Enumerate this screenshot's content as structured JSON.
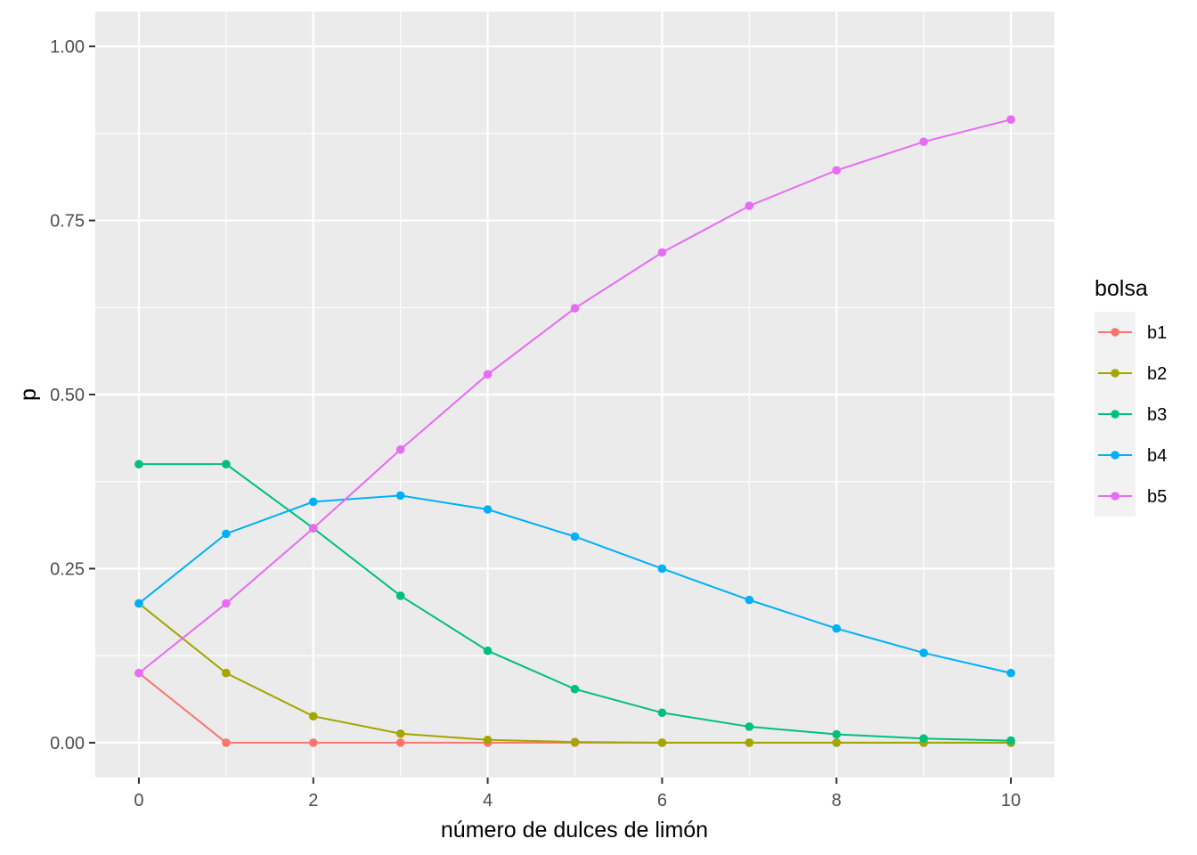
{
  "chart_data": {
    "type": "line",
    "title": "",
    "xlabel": "número de dulces de limón",
    "ylabel": "p",
    "xlim": [
      -0.5,
      10.5
    ],
    "ylim": [
      -0.05,
      1.05
    ],
    "x_ticks": [
      0,
      2,
      4,
      6,
      8,
      10
    ],
    "x_tick_labels": [
      "0",
      "2",
      "4",
      "6",
      "8",
      "10"
    ],
    "y_ticks": [
      0,
      0.25,
      0.5,
      0.75,
      1.0
    ],
    "y_tick_labels": [
      "0.00",
      "0.25",
      "0.50",
      "0.75",
      "1.00"
    ],
    "grid": true,
    "legend": {
      "title": "bolsa",
      "position": "right"
    },
    "x": [
      0,
      1,
      2,
      3,
      4,
      5,
      6,
      7,
      8,
      9,
      10
    ],
    "series": [
      {
        "name": "b1",
        "color": "#F8766D",
        "values": [
          0.1,
          0,
          0,
          0,
          0,
          0,
          0,
          0,
          0,
          0,
          0
        ]
      },
      {
        "name": "b2",
        "color": "#A3A500",
        "values": [
          0.2,
          0.1,
          0.038,
          0.013,
          0.004,
          0.001,
          0.0,
          0.0,
          0.0,
          0.0,
          0.0
        ]
      },
      {
        "name": "b3",
        "color": "#00BF7D",
        "values": [
          0.4,
          0.4,
          0.308,
          0.211,
          0.132,
          0.077,
          0.043,
          0.023,
          0.012,
          0.006,
          0.003
        ]
      },
      {
        "name": "b4",
        "color": "#00B0F6",
        "values": [
          0.2,
          0.3,
          0.346,
          0.355,
          0.335,
          0.296,
          0.25,
          0.205,
          0.164,
          0.129,
          0.1
        ]
      },
      {
        "name": "b5",
        "color": "#E76BF3",
        "values": [
          0.1,
          0.2,
          0.308,
          0.421,
          0.529,
          0.624,
          0.704,
          0.771,
          0.822,
          0.863,
          0.895
        ]
      }
    ]
  }
}
